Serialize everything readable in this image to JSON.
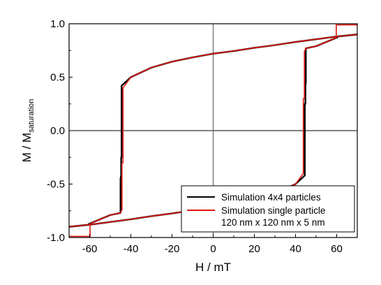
{
  "chart_data": {
    "type": "line",
    "xlabel": "H / mT",
    "ylabel": {
      "main": "M / M",
      "sub": "saturation"
    },
    "xlim": [
      -70,
      70
    ],
    "ylim": [
      -1.0,
      1.0
    ],
    "x_ticks": [
      -60,
      -40,
      -20,
      0,
      20,
      40,
      60
    ],
    "x_tick_labels": [
      "-60",
      "-40",
      "-20",
      "0",
      "20",
      "40",
      "60"
    ],
    "y_ticks": [
      -1.0,
      -0.5,
      0.0,
      0.5,
      1.0
    ],
    "y_tick_labels": [
      "-1.0",
      "-0.5",
      "0.0",
      "0.5",
      "1.0"
    ],
    "grid": false,
    "zero_lines": true,
    "legend": {
      "position": "bottom-right",
      "entries": [
        {
          "label": "Simulation 4x4 particles",
          "color": "#000000"
        },
        {
          "label": "Simulation single particle",
          "color": "#e0140e"
        }
      ],
      "extra_line": "120 nm x 120 nm x 5 nm"
    },
    "series": [
      {
        "name": "Simulation 4x4 particles",
        "color": "#000000",
        "branches": [
          {
            "x": [
              70,
              60,
              50,
              40,
              30,
              20,
              10,
              0,
              -10,
              -20,
              -30,
              -40,
              -44.5,
              -44.5,
              -44.7,
              -44.7,
              -45,
              -45,
              -50,
              -55,
              -60,
              -60.2,
              -60.2,
              -70
            ],
            "y": [
              0.9,
              0.88,
              0.855,
              0.83,
              0.8,
              0.775,
              0.745,
              0.72,
              0.685,
              0.645,
              0.59,
              0.5,
              0.42,
              -0.25,
              -0.25,
              -0.42,
              -0.45,
              -0.77,
              -0.79,
              -0.83,
              -0.87,
              -0.87,
              -0.88,
              -0.9
            ]
          },
          {
            "x": [
              -70,
              -60,
              -50,
              -40,
              -30,
              -20,
              -10,
              0,
              10,
              20,
              30,
              40,
              44.5,
              44.5,
              44.8,
              44.8,
              45,
              45,
              50,
              55,
              60,
              60.2,
              60.2,
              70
            ],
            "y": [
              -0.9,
              -0.88,
              -0.855,
              -0.83,
              -0.8,
              -0.775,
              -0.745,
              -0.72,
              -0.685,
              -0.645,
              -0.59,
              -0.5,
              -0.42,
              0.25,
              0.25,
              0.42,
              0.45,
              0.77,
              0.79,
              0.83,
              0.87,
              0.87,
              0.88,
              0.9
            ]
          }
        ]
      },
      {
        "name": "Simulation single particle",
        "color": "#e0140e",
        "branches": [
          {
            "x": [
              70,
              60,
              50,
              40,
              30,
              20,
              10,
              0,
              -10,
              -20,
              -30,
              -40,
              -43.8,
              -43.8,
              -44.3,
              -44.3,
              -45,
              -50,
              -55,
              -59.8,
              -59.8,
              -70
            ],
            "y": [
              0.9,
              0.88,
              0.855,
              0.83,
              0.8,
              0.775,
              0.745,
              0.72,
              0.685,
              0.645,
              0.59,
              0.5,
              0.4,
              -0.3,
              -0.3,
              -0.74,
              -0.77,
              -0.79,
              -0.83,
              -0.87,
              -0.99,
              -0.99
            ]
          },
          {
            "x": [
              -70,
              -60,
              -50,
              -40,
              -30,
              -20,
              -10,
              0,
              10,
              20,
              30,
              40,
              43.8,
              43.8,
              44.3,
              44.3,
              45,
              50,
              55,
              59.8,
              59.8,
              70
            ],
            "y": [
              -0.9,
              -0.88,
              -0.855,
              -0.83,
              -0.8,
              -0.775,
              -0.745,
              -0.72,
              -0.685,
              -0.645,
              -0.59,
              -0.5,
              -0.4,
              0.3,
              0.3,
              0.74,
              0.77,
              0.79,
              0.83,
              0.87,
              0.99,
              0.99
            ]
          }
        ]
      }
    ]
  }
}
